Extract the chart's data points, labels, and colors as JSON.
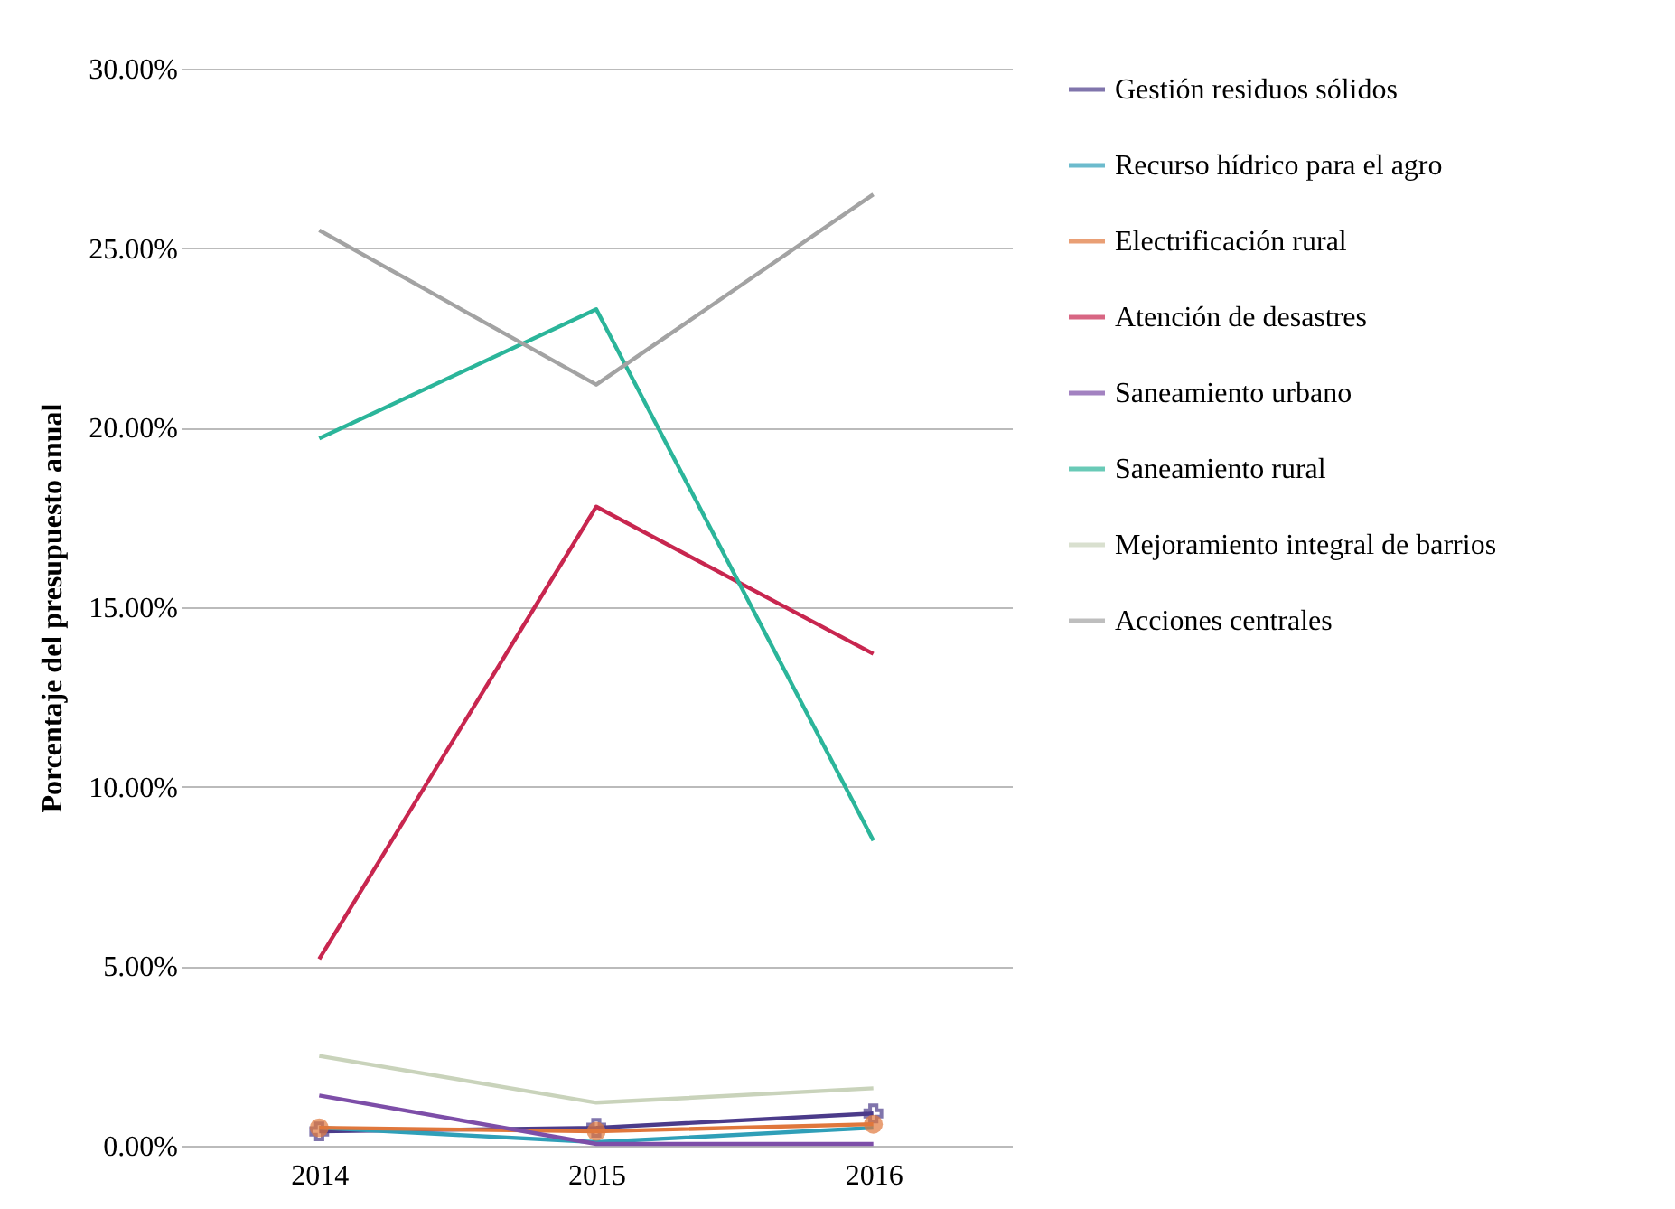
{
  "chart_data": {
    "type": "line",
    "ylabel": "Porcentaje del presupuesto anual",
    "categories": [
      "2014",
      "2015",
      "2016"
    ],
    "ylim": [
      0,
      30
    ],
    "yticks": [
      {
        "value": 0,
        "label": "0.00%"
      },
      {
        "value": 5,
        "label": "5.00%"
      },
      {
        "value": 10,
        "label": "10.00%"
      },
      {
        "value": 15,
        "label": "15.00%"
      },
      {
        "value": 20,
        "label": "20.00%"
      },
      {
        "value": 25,
        "label": "25.00%"
      },
      {
        "value": 30,
        "label": "30.00%"
      }
    ],
    "grid": "y",
    "legend": "right",
    "series": [
      {
        "name": "Gestión residuos sólidos",
        "color": "#4b3b8a",
        "marker": "cross",
        "values": [
          0.4,
          0.5,
          0.9
        ]
      },
      {
        "name": "Recurso hídrico para el agro",
        "color": "#2f9fb8",
        "values": [
          0.5,
          0.1,
          0.5
        ]
      },
      {
        "name": "Electrificación rural",
        "color": "#e0773c",
        "marker": "circle",
        "values": [
          0.5,
          0.4,
          0.6
        ]
      },
      {
        "name": "Atención de desastres",
        "color": "#c8264f",
        "values": [
          5.2,
          17.8,
          13.7
        ]
      },
      {
        "name": "Saneamiento urbano",
        "color": "#7d4ea8",
        "values": [
          1.4,
          0.05,
          0.05
        ]
      },
      {
        "name": "Saneamiento rural",
        "color": "#2bb59a",
        "values": [
          19.7,
          23.3,
          8.5
        ]
      },
      {
        "name": "Mejoramiento integral de barrios",
        "color": "#c9d3bb",
        "values": [
          2.5,
          1.2,
          1.6
        ]
      },
      {
        "name": "Acciones centrales",
        "color": "#a3a3a3",
        "values": [
          25.5,
          21.2,
          26.5
        ]
      }
    ]
  }
}
